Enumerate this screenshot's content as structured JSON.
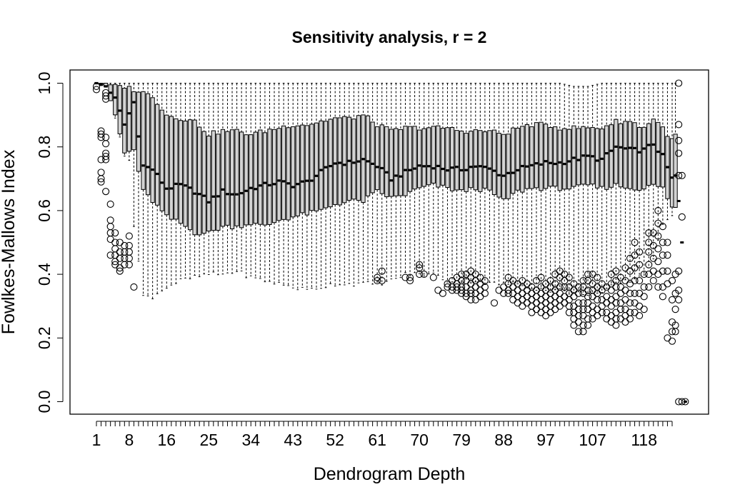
{
  "chart_data": {
    "type": "boxplot",
    "title": "Sensitivity analysis, r = 2",
    "xlabel": "Dendrogram Depth",
    "ylabel": "Fowlkes-Mallows Index",
    "n_boxes": 124,
    "xlim": [
      0.5,
      124.5
    ],
    "ylim": [
      0.0,
      1.0
    ],
    "x_tick_labels": [
      "1",
      "8",
      "16",
      "25",
      "34",
      "43",
      "52",
      "61",
      "70",
      "79",
      "88",
      "97",
      "107",
      "118"
    ],
    "y_tick_labels": [
      "0.0",
      "0.2",
      "0.4",
      "0.6",
      "0.8",
      "1.0"
    ],
    "grid": false,
    "legend": "none",
    "colors": {
      "box_fill": "#d3d3d3",
      "stroke": "#000000"
    },
    "depth_profile": {
      "depth": [
        1,
        3,
        5,
        7,
        9,
        11,
        13,
        16,
        19,
        22,
        25,
        28,
        31,
        34,
        37,
        40,
        43,
        46,
        49,
        52,
        55,
        58,
        61,
        64,
        67,
        70,
        73,
        76,
        79,
        82,
        85,
        88,
        91,
        94,
        97,
        100,
        103,
        106,
        109,
        112,
        115,
        118,
        120,
        122,
        124
      ],
      "median": [
        1.0,
        0.99,
        0.95,
        0.87,
        0.94,
        0.74,
        0.73,
        0.67,
        0.68,
        0.66,
        0.63,
        0.66,
        0.65,
        0.67,
        0.68,
        0.69,
        0.68,
        0.69,
        0.72,
        0.75,
        0.75,
        0.76,
        0.74,
        0.7,
        0.72,
        0.74,
        0.74,
        0.73,
        0.73,
        0.74,
        0.73,
        0.71,
        0.73,
        0.74,
        0.75,
        0.75,
        0.76,
        0.77,
        0.76,
        0.8,
        0.79,
        0.79,
        0.81,
        0.77,
        0.7
      ],
      "q1": [
        1.0,
        0.99,
        0.9,
        0.78,
        0.79,
        0.66,
        0.63,
        0.58,
        0.56,
        0.53,
        0.53,
        0.55,
        0.55,
        0.56,
        0.55,
        0.57,
        0.58,
        0.59,
        0.6,
        0.62,
        0.63,
        0.63,
        0.66,
        0.64,
        0.65,
        0.67,
        0.68,
        0.67,
        0.66,
        0.67,
        0.66,
        0.63,
        0.66,
        0.67,
        0.67,
        0.67,
        0.67,
        0.68,
        0.67,
        0.68,
        0.67,
        0.67,
        0.68,
        0.67,
        0.61
      ],
      "q3": [
        1.0,
        1.0,
        0.99,
        0.99,
        0.98,
        0.97,
        0.96,
        0.9,
        0.89,
        0.88,
        0.84,
        0.85,
        0.85,
        0.84,
        0.85,
        0.86,
        0.87,
        0.87,
        0.88,
        0.89,
        0.89,
        0.9,
        0.87,
        0.85,
        0.86,
        0.86,
        0.86,
        0.86,
        0.85,
        0.85,
        0.85,
        0.84,
        0.86,
        0.87,
        0.87,
        0.86,
        0.86,
        0.86,
        0.86,
        0.88,
        0.88,
        0.86,
        0.89,
        0.86,
        0.82
      ],
      "lower_whisker": [
        1.0,
        0.99,
        0.99,
        0.98,
        0.55,
        0.33,
        0.33,
        0.36,
        0.38,
        0.39,
        0.4,
        0.4,
        0.41,
        0.39,
        0.38,
        0.37,
        0.36,
        0.35,
        0.36,
        0.37,
        0.37,
        0.37,
        0.37,
        0.38,
        0.4,
        0.4,
        0.4,
        0.38,
        0.38,
        0.38,
        0.37,
        0.37,
        0.37,
        0.36,
        0.35,
        0.35,
        0.34,
        0.34,
        0.34,
        0.37,
        0.38,
        0.4,
        0.45,
        0.55,
        0.59
      ],
      "upper_whisker": [
        1.0,
        1.0,
        1.0,
        1.0,
        1.0,
        1.0,
        1.0,
        1.0,
        1.0,
        1.0,
        1.0,
        1.0,
        1.0,
        1.0,
        1.0,
        1.0,
        1.0,
        1.0,
        1.0,
        1.0,
        1.0,
        1.0,
        1.0,
        1.0,
        1.0,
        1.0,
        1.0,
        1.0,
        1.0,
        1.0,
        1.0,
        1.0,
        1.0,
        1.0,
        1.0,
        1.0,
        0.99,
        0.99,
        1.0,
        1.0,
        1.0,
        1.0,
        1.0,
        1.0,
        1.0
      ]
    },
    "outliers": [
      {
        "depth": 1,
        "values": [
          0.99,
          0.98
        ]
      },
      {
        "depth": 2,
        "values": [
          0.85,
          0.84,
          0.83,
          0.76,
          0.72,
          0.7,
          0.69
        ]
      },
      {
        "depth": 3,
        "values": [
          0.97,
          0.96,
          0.95,
          0.83,
          0.81,
          0.78,
          0.77,
          0.76,
          0.66
        ]
      },
      {
        "depth": 4,
        "values": [
          0.62,
          0.57,
          0.55,
          0.53,
          0.51,
          0.46
        ]
      },
      {
        "depth": 5,
        "values": [
          0.53,
          0.5,
          0.48,
          0.46,
          0.44,
          0.43
        ]
      },
      {
        "depth": 6,
        "values": [
          0.5,
          0.47,
          0.45,
          0.42,
          0.41
        ]
      },
      {
        "depth": 7,
        "values": [
          0.49,
          0.47,
          0.45,
          0.43
        ]
      },
      {
        "depth": 8,
        "values": [
          0.52,
          0.49,
          0.47,
          0.45,
          0.43
        ]
      },
      {
        "depth": 9,
        "values": [
          0.36
        ]
      },
      {
        "depth": 61,
        "values": [
          0.39,
          0.38
        ]
      },
      {
        "depth": 62,
        "values": [
          0.41,
          0.38
        ]
      },
      {
        "depth": 67,
        "values": [
          0.39
        ]
      },
      {
        "depth": 68,
        "values": [
          0.39,
          0.38
        ]
      },
      {
        "depth": 70,
        "values": [
          0.43,
          0.42,
          0.4
        ]
      },
      {
        "depth": 71,
        "values": [
          0.4
        ]
      },
      {
        "depth": 73,
        "values": [
          0.39
        ]
      },
      {
        "depth": 74,
        "values": [
          0.35
        ]
      },
      {
        "depth": 75,
        "values": [
          0.34
        ]
      },
      {
        "depth": 76,
        "values": [
          0.37,
          0.36
        ]
      },
      {
        "depth": 77,
        "values": [
          0.38,
          0.36,
          0.35
        ]
      },
      {
        "depth": 78,
        "values": [
          0.39,
          0.37,
          0.36,
          0.35
        ]
      },
      {
        "depth": 79,
        "values": [
          0.4,
          0.38,
          0.36,
          0.35,
          0.34
        ]
      },
      {
        "depth": 80,
        "values": [
          0.4,
          0.38,
          0.36,
          0.34,
          0.33
        ]
      },
      {
        "depth": 81,
        "values": [
          0.41,
          0.39,
          0.37,
          0.35,
          0.34,
          0.32
        ]
      },
      {
        "depth": 82,
        "values": [
          0.4,
          0.38,
          0.36,
          0.34,
          0.32
        ]
      },
      {
        "depth": 83,
        "values": [
          0.39,
          0.37,
          0.35,
          0.33
        ]
      },
      {
        "depth": 84,
        "values": [
          0.38,
          0.36,
          0.34
        ]
      },
      {
        "depth": 86,
        "values": [
          0.31
        ]
      },
      {
        "depth": 87,
        "values": [
          0.35
        ]
      },
      {
        "depth": 88,
        "values": [
          0.36,
          0.34
        ]
      },
      {
        "depth": 89,
        "values": [
          0.39,
          0.37,
          0.35,
          0.34
        ]
      },
      {
        "depth": 90,
        "values": [
          0.38,
          0.36,
          0.34,
          0.32
        ]
      },
      {
        "depth": 91,
        "values": [
          0.37,
          0.35,
          0.33,
          0.31
        ]
      },
      {
        "depth": 92,
        "values": [
          0.38,
          0.36,
          0.34,
          0.32,
          0.3
        ]
      },
      {
        "depth": 93,
        "values": [
          0.37,
          0.35,
          0.33,
          0.31
        ]
      },
      {
        "depth": 94,
        "values": [
          0.36,
          0.34,
          0.32,
          0.3,
          0.28
        ]
      },
      {
        "depth": 95,
        "values": [
          0.38,
          0.35,
          0.33,
          0.31,
          0.29
        ]
      },
      {
        "depth": 96,
        "values": [
          0.39,
          0.36,
          0.34,
          0.32,
          0.3,
          0.28
        ]
      },
      {
        "depth": 97,
        "values": [
          0.37,
          0.35,
          0.33,
          0.31,
          0.29,
          0.27
        ]
      },
      {
        "depth": 98,
        "values": [
          0.38,
          0.36,
          0.34,
          0.32,
          0.3,
          0.28
        ]
      },
      {
        "depth": 99,
        "values": [
          0.4,
          0.37,
          0.35,
          0.33,
          0.31,
          0.29
        ]
      },
      {
        "depth": 100,
        "values": [
          0.41,
          0.39,
          0.36,
          0.34,
          0.32,
          0.3
        ]
      },
      {
        "depth": 101,
        "values": [
          0.4,
          0.38,
          0.36,
          0.33,
          0.31
        ]
      },
      {
        "depth": 102,
        "values": [
          0.39,
          0.36,
          0.34,
          0.32,
          0.3,
          0.28
        ]
      },
      {
        "depth": 103,
        "values": [
          0.37,
          0.35,
          0.33,
          0.3,
          0.28,
          0.26,
          0.24
        ]
      },
      {
        "depth": 104,
        "values": [
          0.36,
          0.34,
          0.31,
          0.29,
          0.27,
          0.25,
          0.22
        ]
      },
      {
        "depth": 105,
        "values": [
          0.38,
          0.36,
          0.34,
          0.31,
          0.29,
          0.27,
          0.24,
          0.22
        ]
      },
      {
        "depth": 106,
        "values": [
          0.4,
          0.38,
          0.35,
          0.33,
          0.31,
          0.29,
          0.26,
          0.24
        ]
      },
      {
        "depth": 107,
        "values": [
          0.4,
          0.37,
          0.35,
          0.33,
          0.3,
          0.28,
          0.26
        ]
      },
      {
        "depth": 108,
        "values": [
          0.39,
          0.36,
          0.34,
          0.32,
          0.29,
          0.27
        ]
      },
      {
        "depth": 109,
        "values": [
          0.37,
          0.35,
          0.32,
          0.3,
          0.28
        ]
      },
      {
        "depth": 110,
        "values": [
          0.36,
          0.33,
          0.31,
          0.28,
          0.26
        ]
      },
      {
        "depth": 111,
        "values": [
          0.4,
          0.37,
          0.35,
          0.32,
          0.3,
          0.27,
          0.25
        ]
      },
      {
        "depth": 112,
        "values": [
          0.41,
          0.38,
          0.36,
          0.33,
          0.31,
          0.28,
          0.26,
          0.24
        ]
      },
      {
        "depth": 113,
        "values": [
          0.39,
          0.36,
          0.34,
          0.31,
          0.29,
          0.26
        ]
      },
      {
        "depth": 114,
        "values": [
          0.42,
          0.38,
          0.35,
          0.32,
          0.29,
          0.27,
          0.25
        ]
      },
      {
        "depth": 115,
        "values": [
          0.45,
          0.41,
          0.37,
          0.34,
          0.31,
          0.28,
          0.26
        ]
      },
      {
        "depth": 116,
        "values": [
          0.5,
          0.46,
          0.42,
          0.38,
          0.34,
          0.31,
          0.28
        ]
      },
      {
        "depth": 117,
        "values": [
          0.47,
          0.43,
          0.38,
          0.34,
          0.3,
          0.27
        ]
      },
      {
        "depth": 118,
        "values": [
          0.4,
          0.36,
          0.33,
          0.29
        ]
      },
      {
        "depth": 119,
        "values": [
          0.53,
          0.5,
          0.47,
          0.43,
          0.4,
          0.36
        ]
      },
      {
        "depth": 120,
        "values": [
          0.53,
          0.49,
          0.45,
          0.41,
          0.38
        ]
      },
      {
        "depth": 121,
        "values": [
          0.6,
          0.56,
          0.52,
          0.48,
          0.44,
          0.4,
          0.36
        ]
      },
      {
        "depth": 122,
        "values": [
          0.55,
          0.5,
          0.46,
          0.41,
          0.36,
          0.33
        ]
      },
      {
        "depth": 123,
        "values": [
          0.5,
          0.46,
          0.41,
          0.37,
          0.2
        ]
      },
      {
        "depth": 124,
        "values": [
          0.38,
          0.32,
          0.25,
          0.22,
          0.19
        ]
      }
    ],
    "tail_boxes": [
      {
        "x": 124.7,
        "lower_whisker": 0.61,
        "q1": 0.61,
        "median": 0.71,
        "q3": 0.84,
        "upper_whisker": 1.0,
        "outliers": [
          0.4,
          0.34,
          0.29,
          0.24,
          0.22
        ]
      },
      {
        "x": 125.4,
        "points": [
          1.0,
          0.87,
          0.82,
          0.78,
          0.71,
          0.41,
          0.35,
          0.32,
          0.0
        ],
        "median": 0.63
      },
      {
        "x": 126.1,
        "points": [
          0.71,
          0.58,
          0.0
        ],
        "median": 0.5
      },
      {
        "x": 126.8,
        "points": [
          0.0
        ],
        "median": 0.0
      }
    ]
  }
}
